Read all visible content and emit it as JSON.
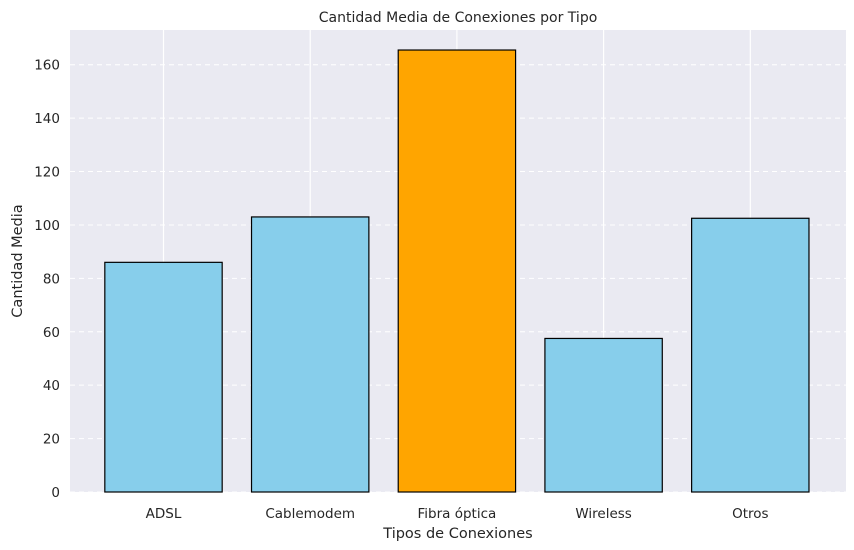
{
  "chart_data": {
    "type": "bar",
    "title": "Cantidad Media de Conexiones por Tipo",
    "xlabel": "Tipos de Conexiones",
    "ylabel": "Cantidad Media",
    "categories": [
      "ADSL",
      "Cablemodem",
      "Fibra óptica",
      "Wireless",
      "Otros"
    ],
    "values": [
      86,
      103,
      165.5,
      57.5,
      102.5
    ],
    "highlight_category": "Fibra óptica",
    "ylim": [
      0,
      173
    ],
    "yticks": [
      0,
      20,
      40,
      60,
      80,
      100,
      120,
      140,
      160
    ],
    "grid": "y-dashed, x-solid",
    "colors": {
      "bar": "#87CEEB",
      "highlight": "#FFA500",
      "edge": "#000000",
      "background": "#EAEAF2",
      "grid": "#FFFFFF"
    }
  }
}
